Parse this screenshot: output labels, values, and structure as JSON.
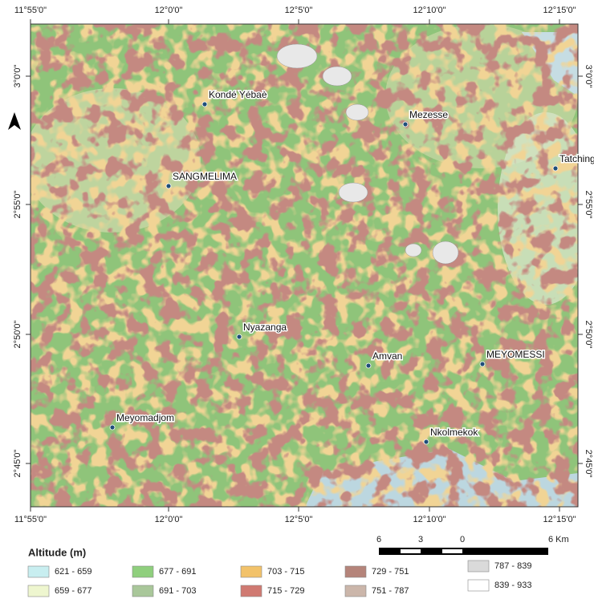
{
  "map": {
    "top_ticks": [
      "11°55'0\"",
      "12°0'0\"",
      "12°5'0\"",
      "12°10'0\"",
      "12°15'0\""
    ],
    "bottom_ticks": [
      "11°55'0\"",
      "12°0'0\"",
      "12°5'0\"",
      "12°10'0\"",
      "12°15'0\""
    ],
    "left_ticks": [
      "3°0'0\"",
      "2°55'0\"",
      "2°50'0\"",
      "2°45'0\""
    ],
    "right_ticks": [
      "3°0'0\"",
      "2°55'0\"",
      "2°50'0\"",
      "2°45'0\""
    ],
    "places": [
      "Kondé Yébaè",
      "Mezesse",
      "Tatching",
      "SANGMELIMA",
      "Nyazanga",
      "Amvan",
      "MEYOMESSI",
      "Meyomadjom",
      "Nkolmekok"
    ],
    "scale_labels": [
      "6",
      "3",
      "0",
      "6 Km"
    ],
    "legend": {
      "title": "Altitude (m)",
      "items": [
        {
          "label": "621 - 659",
          "color": "#c8eef0"
        },
        {
          "label": "659 - 677",
          "color": "#eef6cf"
        },
        {
          "label": "677 - 691",
          "color": "#8fcf7d"
        },
        {
          "label": "691 - 703",
          "color": "#a9c79a"
        },
        {
          "label": "703 - 715",
          "color": "#f2c26a"
        },
        {
          "label": "715 - 729",
          "color": "#d07a72"
        },
        {
          "label": "729 - 751",
          "color": "#b5847a"
        },
        {
          "label": "751 - 787",
          "color": "#cbb6aa"
        },
        {
          "label": "787 - 839",
          "color": "#dadada"
        },
        {
          "label": "839 - 933",
          "color": "#ffffff"
        }
      ]
    }
  }
}
